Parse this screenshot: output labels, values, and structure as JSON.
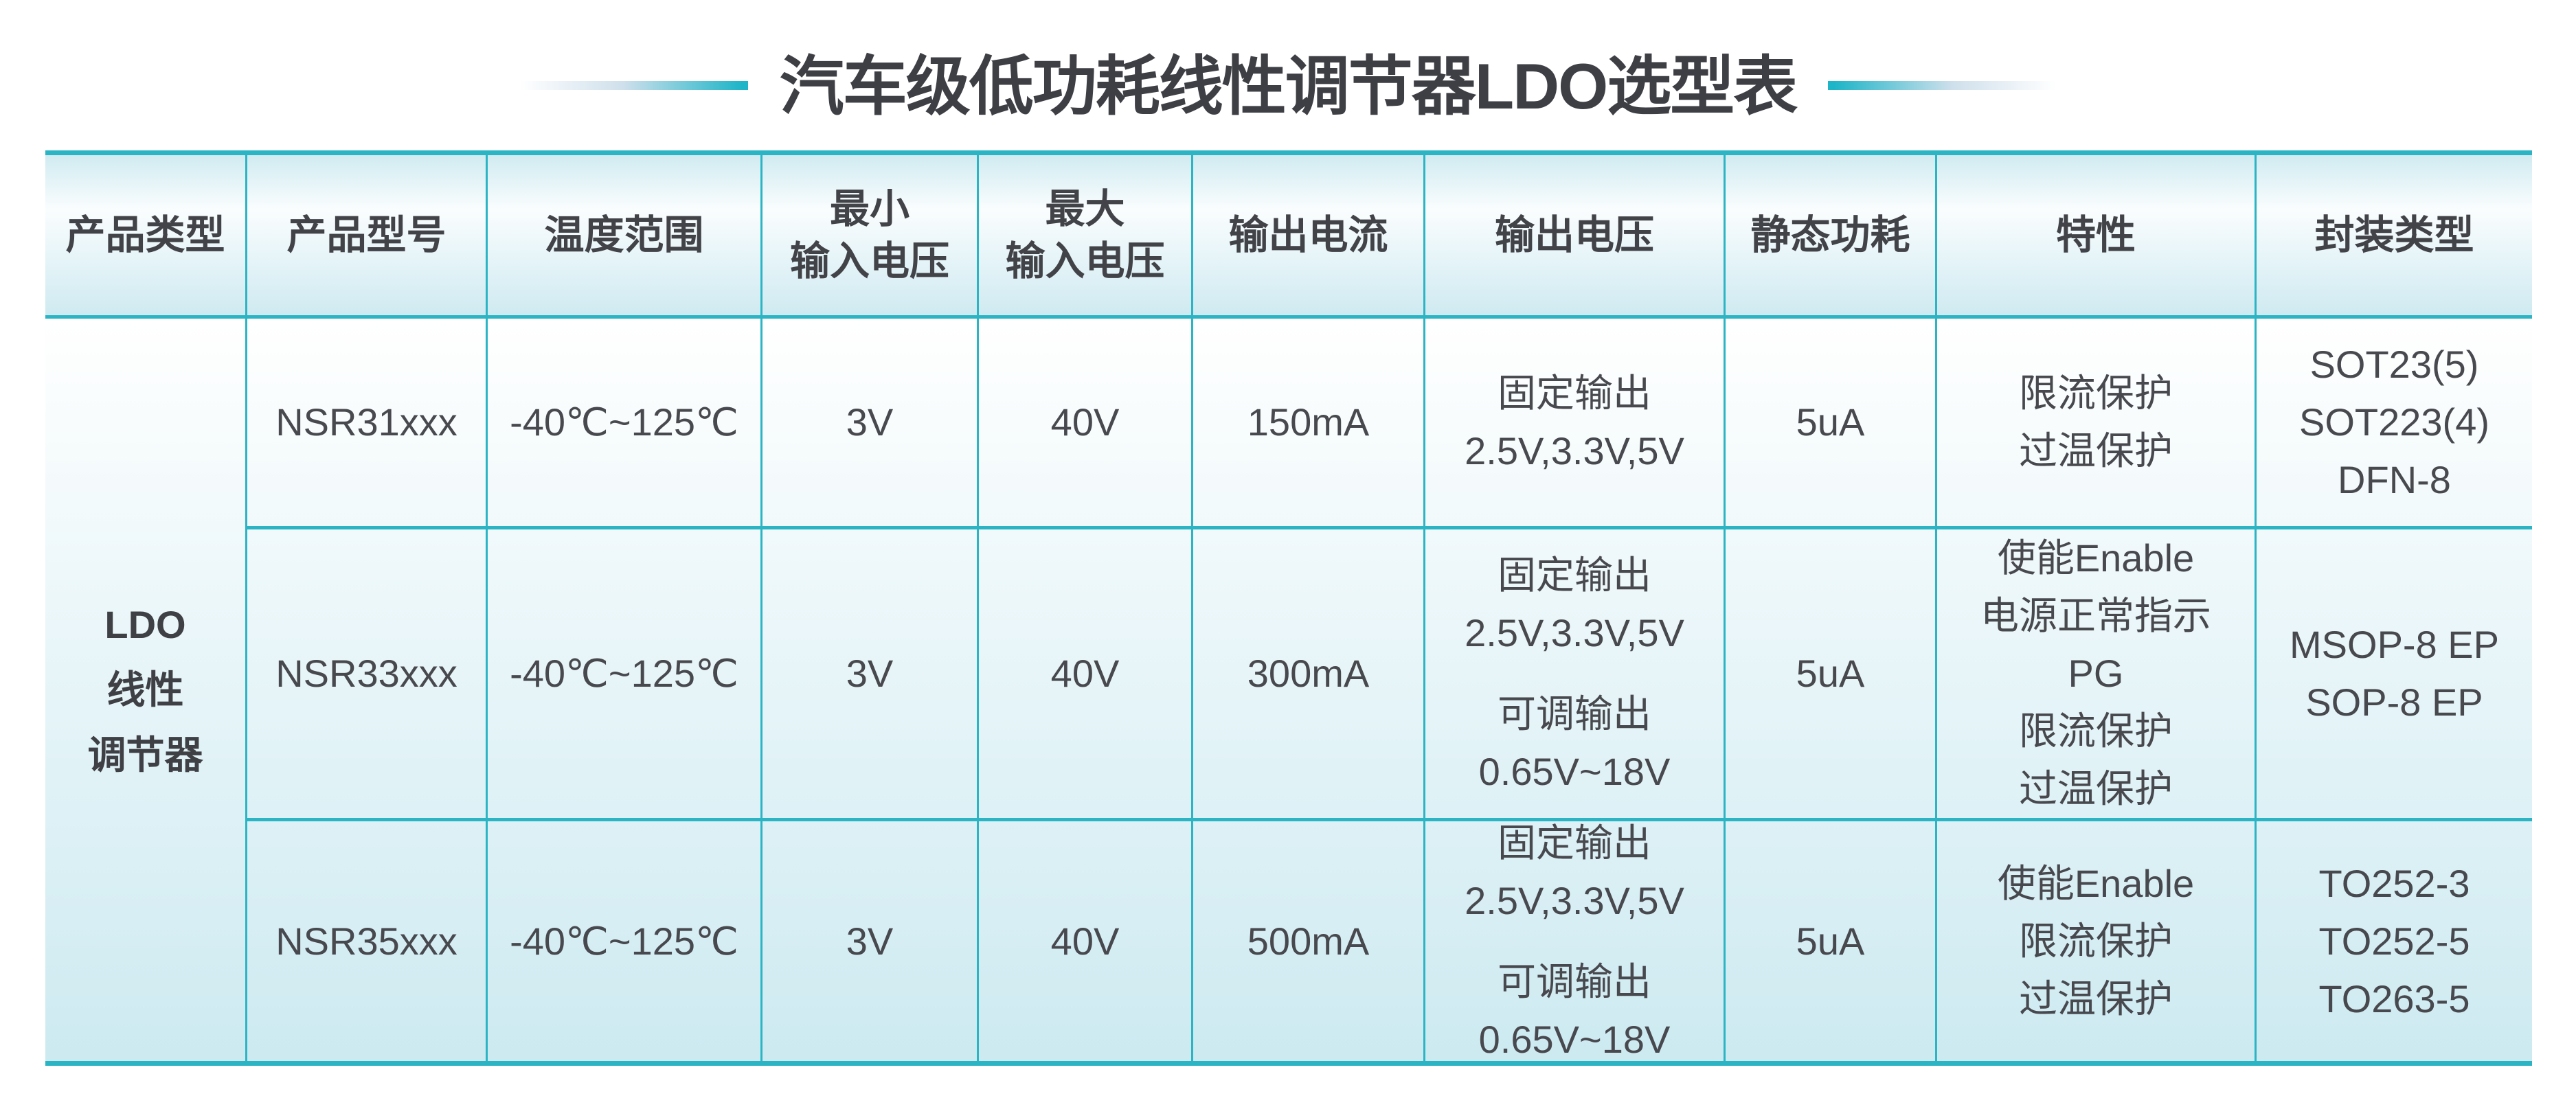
{
  "theme": {
    "accent_teal": "#2bb4c4",
    "cell_fill_light": "#d3edf3",
    "title_color": "#3e3f44"
  },
  "title": {
    "text": "汽车级低功耗线性调节器LDO选型表"
  },
  "table": {
    "headers": [
      "产品类型",
      "产品型号",
      "温度范围",
      "最小\n输入电压",
      "最大\n输入电压",
      "输出电流",
      "输出电压",
      "静态功耗",
      "特性",
      "封装类型"
    ],
    "product_type_cell": "LDO\n线性\n调节器",
    "rows": [
      {
        "model": "NSR31xxx",
        "temp_range": "-40℃~125℃",
        "min_vin": "3V",
        "max_vin": "40V",
        "iout": "150mA",
        "vout_fixed": "固定输出\n2.5V,3.3V,5V",
        "iq": "5uA",
        "features": "限流保护\n过温保护",
        "packages": "SOT23(5)\nSOT223(4)\nDFN-8"
      },
      {
        "model": "NSR33xxx",
        "temp_range": "-40℃~125℃",
        "min_vin": "3V",
        "max_vin": "40V",
        "iout": "300mA",
        "vout_fixed": "固定输出\n2.5V,3.3V,5V",
        "vout_adjustable": "可调输出\n0.65V~18V",
        "iq": "5uA",
        "features": "使能Enable\n电源正常指示\nPG\n限流保护\n过温保护",
        "packages": "MSOP-8 EP\nSOP-8 EP"
      },
      {
        "model": "NSR35xxx",
        "temp_range": "-40℃~125℃",
        "min_vin": "3V",
        "max_vin": "40V",
        "iout": "500mA",
        "vout_fixed": "固定输出\n2.5V,3.3V,5V",
        "vout_adjustable": "可调输出\n0.65V~18V",
        "iq": "5uA",
        "features": "使能Enable\n限流保护\n过温保护",
        "packages": "TO252-3\nTO252-5\nTO263-5"
      }
    ]
  }
}
